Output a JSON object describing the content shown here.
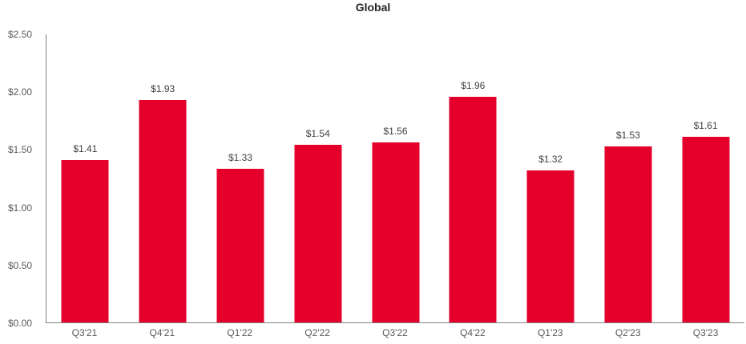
{
  "chart_data": {
    "type": "bar",
    "title": "Global",
    "categories": [
      "Q3'21",
      "Q4'21",
      "Q1'22",
      "Q2'22",
      "Q3'22",
      "Q4'22",
      "Q1'23",
      "Q2'23",
      "Q3'23"
    ],
    "values": [
      1.41,
      1.93,
      1.33,
      1.54,
      1.56,
      1.96,
      1.32,
      1.53,
      1.61
    ],
    "value_labels": [
      "$1.41",
      "$1.93",
      "$1.33",
      "$1.54",
      "$1.56",
      "$1.96",
      "$1.32",
      "$1.53",
      "$1.61"
    ],
    "xlabel": "",
    "ylabel": "",
    "ylim": [
      0,
      2.5
    ],
    "y_ticks": [
      {
        "value": 0.0,
        "label": "$0.00"
      },
      {
        "value": 0.5,
        "label": "$0.50"
      },
      {
        "value": 1.0,
        "label": "$1.00"
      },
      {
        "value": 1.5,
        "label": "$1.50"
      },
      {
        "value": 2.0,
        "label": "$2.00"
      },
      {
        "value": 2.5,
        "label": "$2.50"
      }
    ],
    "grid": false,
    "legend": "none",
    "colors": {
      "bar": "#E4002B",
      "title_text": "#262626",
      "data_label_text": "#404040",
      "axis_tick_text": "#595959",
      "axis_line": "#7F7F7F"
    }
  }
}
